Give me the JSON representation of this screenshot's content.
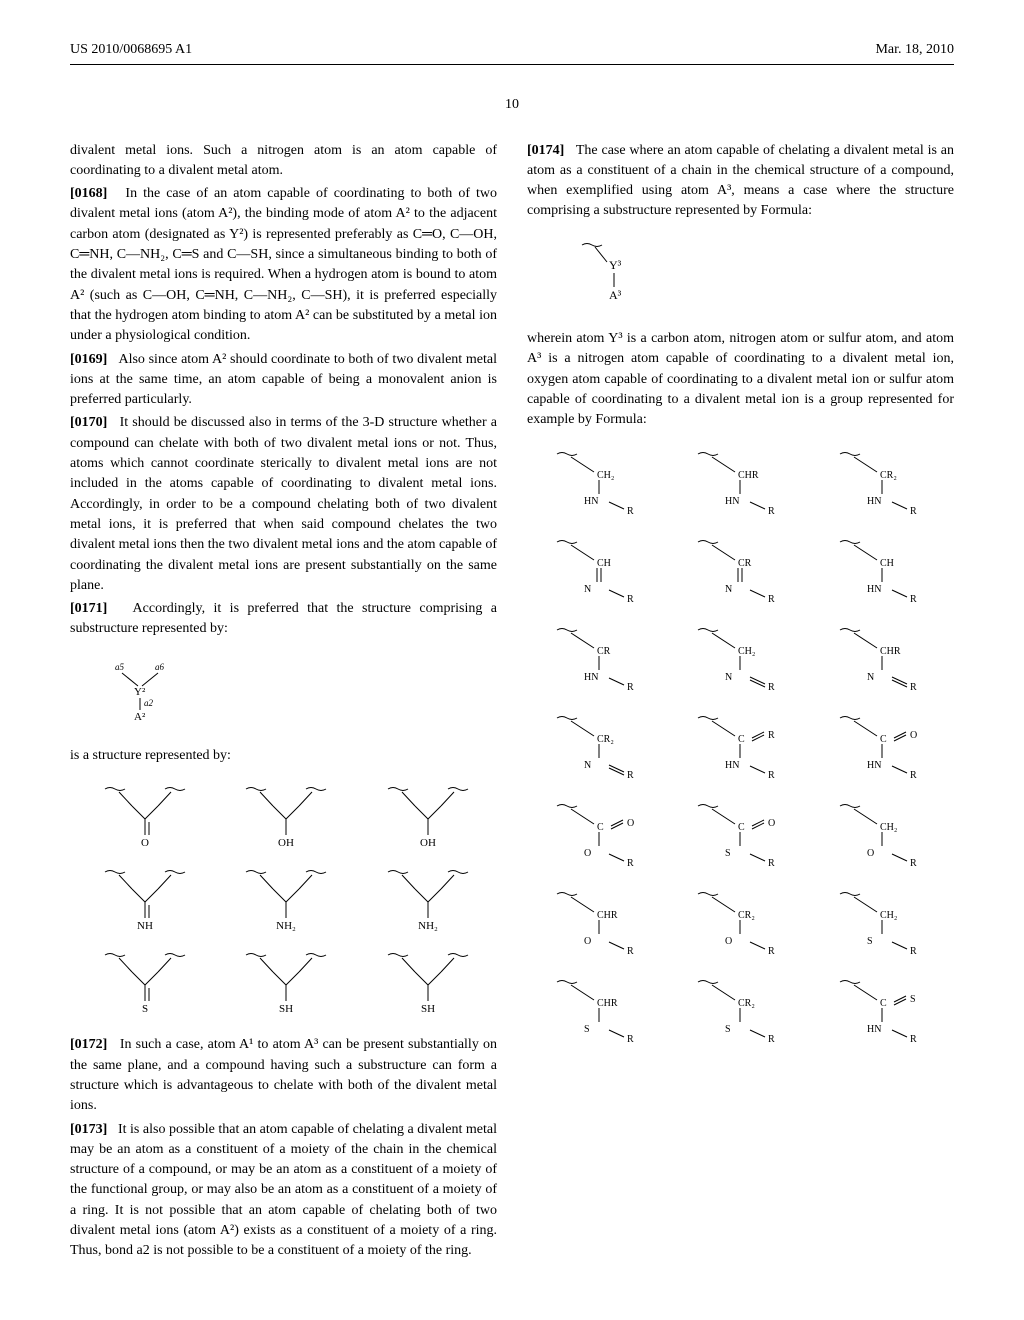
{
  "header": {
    "pub_number": "US 2010/0068695 A1",
    "pub_date": "Mar. 18, 2010"
  },
  "page_num": "10",
  "col1": {
    "lead_text": "divalent metal ions. Such a nitrogen atom is an atom capable of coordinating to a divalent metal atom.",
    "p0168": "In the case of an atom capable of coordinating to both of two divalent metal ions (atom A²), the binding mode of atom A² to the adjacent carbon atom (designated as Y²) is represented preferably as C═O, C—OH, C═NH, C—NH₂, C═S and C—SH, since a simultaneous binding to both of the divalent metal ions is required. When a hydrogen atom is bound to atom A² (such as C—OH, C═NH, C—NH₂, C—SH), it is preferred especially that the hydrogen atom binding to atom A² can be substituted by a metal ion under a physiological condition.",
    "p0169": "Also since atom A² should coordinate to both of two divalent metal ions at the same time, an atom capable of being a monovalent anion is preferred particularly.",
    "p0170": "It should be discussed also in terms of the 3-D structure whether a compound can chelate with both of two divalent metal ions or not. Thus, atoms which cannot coordinate sterically to divalent metal ions are not included in the atoms capable of coordinating to divalent metal ions. Accordingly, in order to be a compound chelating both of two divalent metal ions, it is preferred that when said compound chelates the two divalent metal ions then the two divalent metal ions and the atom capable of coordinating the divalent metal ions are present substantially on the same plane.",
    "p0171": "Accordingly, it is preferred that the structure comprising a substructure represented by:",
    "formula1": {
      "top": "a5    a6",
      "mid": "Y²",
      "bond": "|a2",
      "bottom": "A²"
    },
    "caption1": "is a structure represented by:",
    "grid1_labels": [
      "O",
      "OH",
      "OH",
      "NH",
      "NH₂",
      "NH₂",
      "S",
      "SH",
      "SH"
    ],
    "p0172": "In such a case, atom A¹ to atom A³ can be present substantially on the same plane, and a compound having such a substructure can form a structure which is advantageous to chelate with both of the divalent metal ions.",
    "p0173": "It is also possible that an atom capable of chelating a divalent metal may be an atom as a constituent of a moiety of the chain in the chemical structure of a compound, or may be an atom as a constituent of a moiety of the functional group, or may also be an atom as a constituent of a moiety of a ring. It is not possible that an atom capable of chelating both of two divalent metal ions (atom A²) exists as a constituent of a moiety of a ring. Thus, bond a2 is not possible to be a constituent of a moiety of the ring."
  },
  "col2": {
    "p0174": "The case where an atom capable of chelating a divalent metal is an atom as a constituent of a chain in the chemical structure of a compound, when exemplified using atom A³, means a case where the structure comprising a substructure represented by Formula:",
    "formula2": {
      "top": "Y³",
      "bond": "|",
      "bottom": "A³"
    },
    "text2": "wherein atom Y³ is a carbon atom, nitrogen atom or sulfur atom, and atom A³ is a nitrogen atom capable of coordinating to a divalent metal ion, oxygen atom capable of coordinating to a divalent metal ion or sulfur atom capable of coordinating to a divalent metal ion is a group represented for example by Formula:",
    "grid2": [
      {
        "y": "CH₂",
        "bond": "|",
        "a": "HN",
        "r": "R"
      },
      {
        "y": "CHR",
        "bond": "|",
        "a": "HN",
        "r": "R"
      },
      {
        "y": "CR₂",
        "bond": "|",
        "a": "HN",
        "r": "R"
      },
      {
        "y": "CH",
        "bond": "‖",
        "a": "N",
        "r": "R"
      },
      {
        "y": "CR",
        "bond": "‖",
        "a": "N",
        "r": "R"
      },
      {
        "y": "CH",
        "bond": "|",
        "a": "HN",
        "r": "R"
      },
      {
        "y": "CR",
        "bond": "|",
        "a": "HN",
        "r": "R"
      },
      {
        "y": "CH₂",
        "bond": "|",
        "a": "N",
        "r": "R",
        "dbl": true
      },
      {
        "y": "CHR",
        "bond": "|",
        "a": "N",
        "r": "R",
        "dbl": true
      },
      {
        "y": "CR₂",
        "bond": "|",
        "a": "N",
        "r": "R",
        "dbl": true
      },
      {
        "y": "C",
        "bond": "|",
        "a": "HN",
        "r": "R",
        "side": "R"
      },
      {
        "y": "C",
        "bond": "|",
        "a": "HN",
        "r": "R",
        "side": "O"
      },
      {
        "y": "C",
        "bond": "|",
        "a": "O",
        "r": "R",
        "side": "O"
      },
      {
        "y": "C",
        "bond": "|",
        "a": "S",
        "r": "R",
        "side": "O"
      },
      {
        "y": "CH₂",
        "bond": "|",
        "a": "O",
        "r": "R"
      },
      {
        "y": "CHR",
        "bond": "|",
        "a": "O",
        "r": "R"
      },
      {
        "y": "CR₂",
        "bond": "|",
        "a": "O",
        "r": "R"
      },
      {
        "y": "CH₂",
        "bond": "|",
        "a": "S",
        "r": "R"
      },
      {
        "y": "CHR",
        "bond": "|",
        "a": "S",
        "r": "R"
      },
      {
        "y": "CR₂",
        "bond": "|",
        "a": "S",
        "r": "R"
      },
      {
        "y": "C",
        "bond": "|",
        "a": "HN",
        "r": "R",
        "side": "S"
      }
    ]
  },
  "style": {
    "text_color": "#000000",
    "bg_color": "#ffffff",
    "body_fontsize": 14,
    "struct_fontsize": 10
  }
}
